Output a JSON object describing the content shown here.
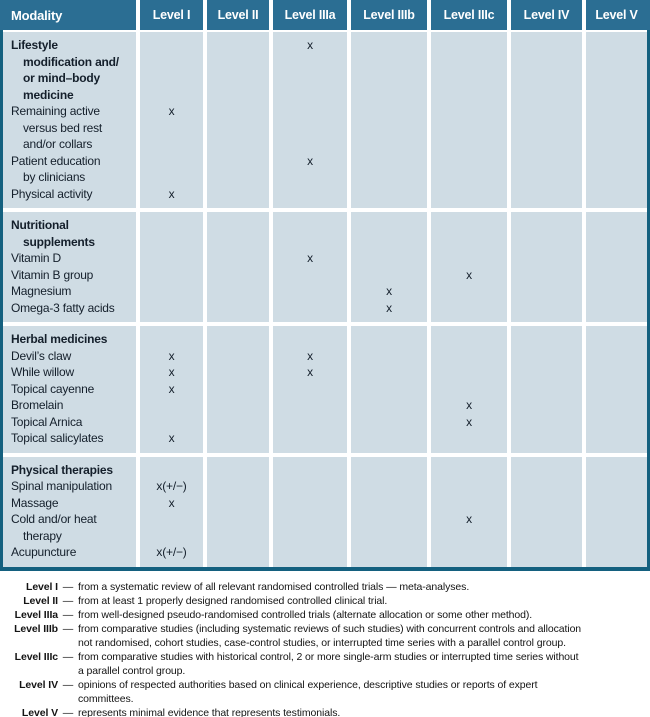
{
  "colors": {
    "header_bg": "#2b6e93",
    "cell_bg": "#cfdce4",
    "table_border": "#14607f",
    "separator": "#ffffff",
    "body_text": "#141f2b",
    "header_text": "#ffffff"
  },
  "table": {
    "columns": [
      "Modality",
      "Level I",
      "Level II",
      "Level IIIa",
      "Level IIIb",
      "Level IIIc",
      "Level IV",
      "Level V"
    ],
    "sections": [
      {
        "name": "lifestyle",
        "rows": [
          {
            "label": "Lifestyle\nmodification and/\nor mind–body\nmedicine",
            "bold": true,
            "marks": [
              "",
              "",
              "x",
              "",
              "",
              "",
              ""
            ]
          },
          {
            "label": "Remaining active\nversus bed rest\nand/or collars",
            "bold": false,
            "marks": [
              "x",
              "",
              "",
              "",
              "",
              "",
              ""
            ]
          },
          {
            "label": "Patient education\nby clinicians",
            "bold": false,
            "marks": [
              "",
              "",
              "x",
              "",
              "",
              "",
              ""
            ]
          },
          {
            "label": "Physical activity",
            "bold": false,
            "marks": [
              "x",
              "",
              "",
              "",
              "",
              "",
              ""
            ]
          }
        ]
      },
      {
        "name": "nutritional-supplements",
        "rows": [
          {
            "label": "Nutritional\nsupplements",
            "bold": true,
            "marks": [
              "",
              "",
              "",
              "",
              "",
              "",
              ""
            ]
          },
          {
            "label": "Vitamin D",
            "bold": false,
            "marks": [
              "",
              "",
              "x",
              "",
              "",
              "",
              ""
            ]
          },
          {
            "label": "Vitamin B group",
            "bold": false,
            "marks": [
              "",
              "",
              "",
              "",
              "x",
              "",
              ""
            ]
          },
          {
            "label": "Magnesium",
            "bold": false,
            "marks": [
              "",
              "",
              "",
              "x",
              "",
              "",
              ""
            ]
          },
          {
            "label": "Omega-3 fatty acids",
            "bold": false,
            "marks": [
              "",
              "",
              "",
              "x",
              "",
              "",
              ""
            ]
          }
        ]
      },
      {
        "name": "herbal-medicines",
        "rows": [
          {
            "label": "Herbal medicines",
            "bold": true,
            "marks": [
              "",
              "",
              "",
              "",
              "",
              "",
              ""
            ]
          },
          {
            "label": "Devil’s claw",
            "bold": false,
            "marks": [
              "x",
              "",
              "x",
              "",
              "",
              "",
              ""
            ]
          },
          {
            "label": "While willow",
            "bold": false,
            "marks": [
              "x",
              "",
              "x",
              "",
              "",
              "",
              ""
            ]
          },
          {
            "label": "Topical cayenne",
            "bold": false,
            "marks": [
              "x",
              "",
              "",
              "",
              "",
              "",
              ""
            ]
          },
          {
            "label": "Bromelain",
            "bold": false,
            "marks": [
              "",
              "",
              "",
              "",
              "x",
              "",
              ""
            ]
          },
          {
            "label": "Topical Arnica",
            "bold": false,
            "marks": [
              "",
              "",
              "",
              "",
              "x",
              "",
              ""
            ]
          },
          {
            "label": "Topical salicylates",
            "bold": false,
            "marks": [
              "x",
              "",
              "",
              "",
              "",
              "",
              ""
            ]
          }
        ]
      },
      {
        "name": "physical-therapies",
        "rows": [
          {
            "label": "Physical therapies",
            "bold": true,
            "marks": [
              "",
              "",
              "",
              "",
              "",
              "",
              ""
            ]
          },
          {
            "label": "Spinal manipulation",
            "bold": false,
            "marks": [
              "x(+/−)",
              "",
              "",
              "",
              "",
              "",
              ""
            ]
          },
          {
            "label": "Massage",
            "bold": false,
            "marks": [
              "x",
              "",
              "",
              "",
              "",
              "",
              ""
            ]
          },
          {
            "label": "Cold and/or heat\ntherapy",
            "bold": false,
            "marks": [
              "",
              "",
              "",
              "",
              "x",
              "",
              ""
            ]
          },
          {
            "label": "Acupuncture",
            "bold": false,
            "marks": [
              "x(+/−)",
              "",
              "",
              "",
              "",
              "",
              ""
            ]
          }
        ]
      }
    ]
  },
  "footnote_dash": "—",
  "footnotes": [
    {
      "label": "Level I",
      "text": "from a systematic review of all relevant randomised controlled trials — meta-analyses."
    },
    {
      "label": "Level II",
      "text": "from at least 1 properly designed randomised controlled clinical trial."
    },
    {
      "label": "Level IIIa",
      "text": "from well-designed pseudo-randomised controlled trials (alternate allocation or some other method)."
    },
    {
      "label": "Level IIIb",
      "text": "from comparative studies (including systematic reviews of such studies) with concurrent controls and allocation\nnot randomised, cohort studies, case-control studies, or interrupted time series with a parallel control group."
    },
    {
      "label": "Level IIIc",
      "text": "from comparative studies with historical control, 2 or more single-arm studies or interrupted time series without\na parallel control group."
    },
    {
      "label": "Level IV",
      "text": "opinions of respected authorities based on clinical experience, descriptive studies or reports of expert\ncommittees."
    },
    {
      "label": "Level V",
      "text": "represents minimal evidence that represents testimonials."
    }
  ]
}
